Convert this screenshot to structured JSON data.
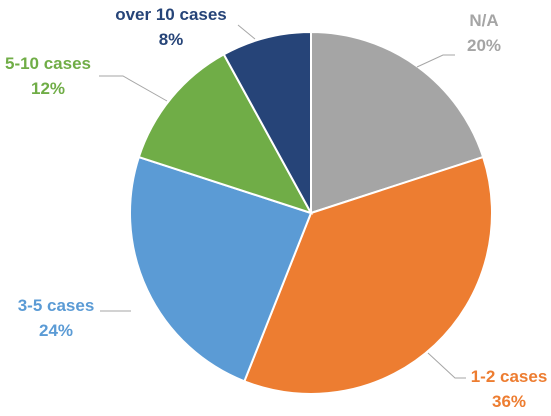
{
  "chart_data": {
    "type": "pie",
    "title": "",
    "slices": [
      {
        "label": "N/A",
        "value_label": "20%",
        "value": 20,
        "color": "#a5a5a5"
      },
      {
        "label": "1-2 cases",
        "value_label": "36%",
        "value": 36,
        "color": "#ed7d31"
      },
      {
        "label": "3-5 cases",
        "value_label": "24%",
        "value": 24,
        "color": "#5b9bd5"
      },
      {
        "label": "5-10 cases",
        "value_label": "12%",
        "value": 12,
        "color": "#70ad47"
      },
      {
        "label": "over 10 cases",
        "value_label": "8%",
        "value": 8,
        "color": "#264478"
      }
    ],
    "start_angle_deg": 0,
    "direction": "clockwise"
  }
}
